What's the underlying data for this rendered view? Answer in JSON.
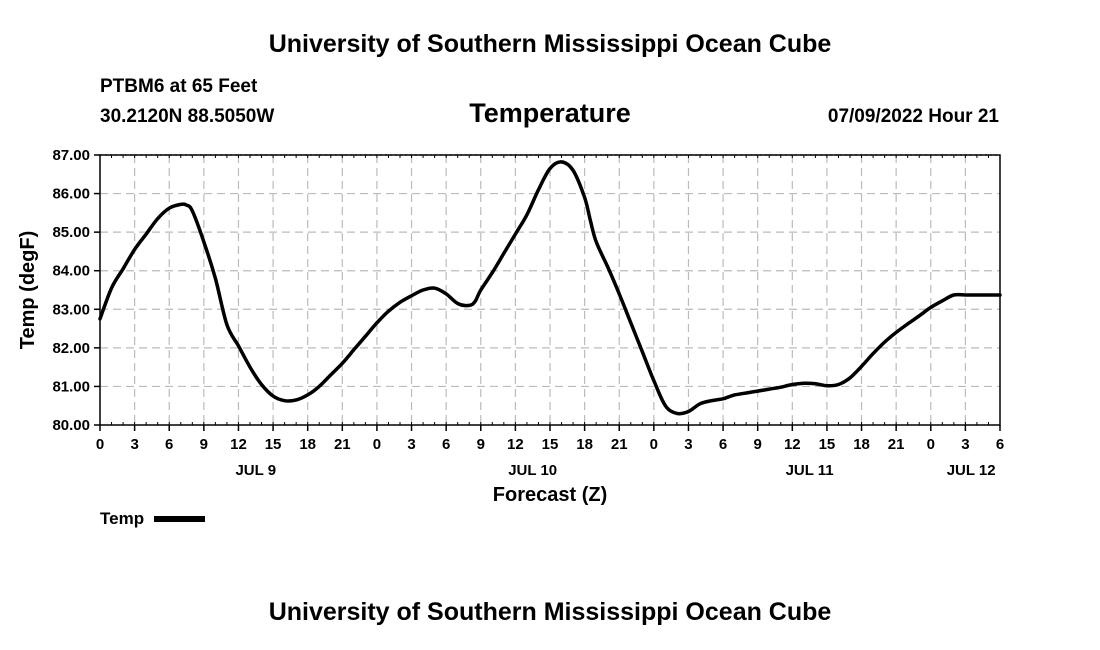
{
  "header": {
    "title": "University of Southern Mississippi Ocean Cube",
    "station": "PTBM6 at 65 Feet",
    "coords": "30.2120N  88.5050W",
    "parameter": "Temperature",
    "timestamp": "07/09/2022 Hour 21"
  },
  "footer": {
    "title": "University of Southern Mississippi Ocean Cube"
  },
  "legend": {
    "label": "Temp"
  },
  "colors": {
    "line": "#000000",
    "grid": "#bbbbbb",
    "background": "#ffffff"
  },
  "chart_data": {
    "type": "line",
    "title": "Temperature",
    "xlabel": "Forecast (Z)",
    "ylabel": "Temp (degF)",
    "x_unit": "hours since 2022-07-09 00Z",
    "xlim": [
      0,
      78
    ],
    "ylim": [
      80.0,
      87.0
    ],
    "yticks": [
      "80.00",
      "81.00",
      "82.00",
      "83.00",
      "84.00",
      "85.00",
      "86.00",
      "87.00"
    ],
    "xtick_labels": [
      "0",
      "3",
      "6",
      "9",
      "12",
      "15",
      "18",
      "21",
      "0",
      "3",
      "6",
      "9",
      "12",
      "15",
      "18",
      "21",
      "0",
      "3",
      "6",
      "9",
      "12",
      "15",
      "18",
      "21",
      "0",
      "3",
      "6"
    ],
    "date_labels": [
      {
        "hour": 13.5,
        "label": "JUL 9"
      },
      {
        "hour": 37.5,
        "label": "JUL 10"
      },
      {
        "hour": 61.5,
        "label": "JUL 11"
      },
      {
        "hour": 75.5,
        "label": "JUL 12"
      }
    ],
    "grid": true,
    "series": [
      {
        "name": "Temp",
        "x": [
          0,
          1,
          2,
          3,
          4,
          5,
          6,
          7,
          7.5,
          8,
          9,
          10,
          11,
          12,
          13,
          14,
          15,
          16,
          17,
          18,
          19,
          20,
          21,
          22,
          23,
          24,
          25,
          26,
          27,
          28,
          29,
          30,
          31,
          32,
          32.5,
          33,
          34,
          35,
          36,
          37,
          38,
          39,
          40,
          41,
          42,
          42.5,
          43,
          44,
          45,
          46,
          47,
          48,
          49,
          50,
          51,
          52,
          53,
          54,
          54.5,
          55,
          56,
          57,
          58,
          59,
          60,
          61,
          62,
          63,
          64,
          65,
          66,
          67,
          68,
          69,
          70,
          71,
          72,
          73,
          74,
          75,
          76,
          77,
          78
        ],
        "values": [
          82.75,
          83.55,
          84.05,
          84.55,
          84.95,
          85.35,
          85.62,
          85.72,
          85.7,
          85.55,
          84.75,
          83.8,
          82.6,
          82.05,
          81.5,
          81.05,
          80.75,
          80.63,
          80.65,
          80.78,
          81.0,
          81.3,
          81.6,
          81.95,
          82.3,
          82.65,
          82.95,
          83.18,
          83.35,
          83.5,
          83.55,
          83.4,
          83.15,
          83.1,
          83.2,
          83.5,
          83.95,
          84.45,
          84.95,
          85.45,
          86.1,
          86.65,
          86.82,
          86.6,
          85.9,
          85.3,
          84.75,
          84.1,
          83.4,
          82.65,
          81.9,
          81.15,
          80.5,
          80.3,
          80.35,
          80.55,
          80.63,
          80.68,
          80.73,
          80.78,
          80.83,
          80.88,
          80.93,
          80.98,
          81.05,
          81.08,
          81.07,
          81.02,
          81.05,
          81.22,
          81.52,
          81.85,
          82.15,
          82.4,
          82.62,
          82.83,
          83.05,
          83.22,
          83.37,
          83.37,
          83.37,
          83.37,
          83.37
        ]
      }
    ]
  }
}
